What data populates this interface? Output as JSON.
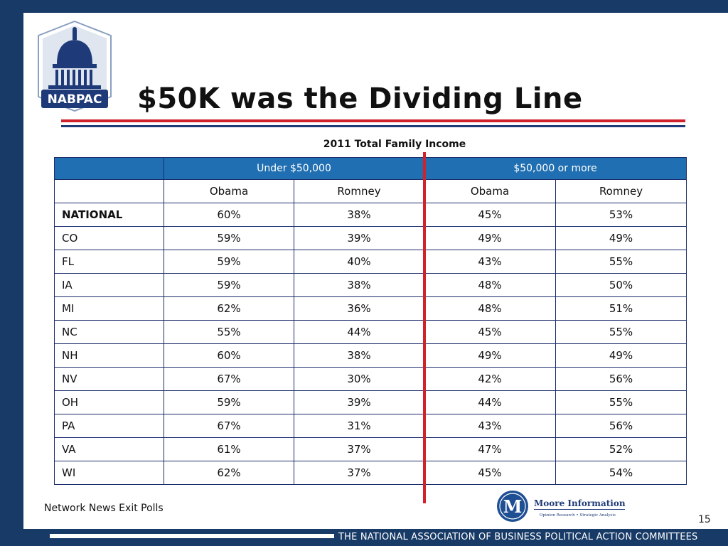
{
  "slide": {
    "title": "$50K was the Dividing Line",
    "caption": "2011 Total Family Income",
    "logo_text": "NABPAC",
    "source": "Network News Exit Polls",
    "page_number": "15",
    "footer": "THE NATIONAL ASSOCIATION OF BUSINESS POLITICAL ACTION COMMITTEES",
    "moore_logo": {
      "letter": "M",
      "name": "Moore Information",
      "tagline": "Opinion Research • Strategic Analysis"
    }
  },
  "colors": {
    "frame": "#173a66",
    "header_blue": "#1f6fb2",
    "accent_red": "#d0222b",
    "border_navy": "#1b2c6b"
  },
  "table": {
    "groups": [
      "Under $50,000",
      "$50,000 or more"
    ],
    "columns": [
      "Obama",
      "Romney",
      "Obama",
      "Romney"
    ],
    "rows": [
      {
        "state": "NATIONAL",
        "values": [
          "60%",
          "38%",
          "45%",
          "53%"
        ]
      },
      {
        "state": "CO",
        "values": [
          "59%",
          "39%",
          "49%",
          "49%"
        ]
      },
      {
        "state": "FL",
        "values": [
          "59%",
          "40%",
          "43%",
          "55%"
        ]
      },
      {
        "state": "IA",
        "values": [
          "59%",
          "38%",
          "48%",
          "50%"
        ]
      },
      {
        "state": "MI",
        "values": [
          "62%",
          "36%",
          "48%",
          "51%"
        ]
      },
      {
        "state": "NC",
        "values": [
          "55%",
          "44%",
          "45%",
          "55%"
        ]
      },
      {
        "state": "NH",
        "values": [
          "60%",
          "38%",
          "49%",
          "49%"
        ]
      },
      {
        "state": "NV",
        "values": [
          "67%",
          "30%",
          "42%",
          "56%"
        ]
      },
      {
        "state": "OH",
        "values": [
          "59%",
          "39%",
          "44%",
          "55%"
        ]
      },
      {
        "state": "PA",
        "values": [
          "67%",
          "31%",
          "43%",
          "56%"
        ]
      },
      {
        "state": "VA",
        "values": [
          "61%",
          "37%",
          "47%",
          "52%"
        ]
      },
      {
        "state": "WI",
        "values": [
          "62%",
          "37%",
          "45%",
          "54%"
        ]
      }
    ]
  }
}
